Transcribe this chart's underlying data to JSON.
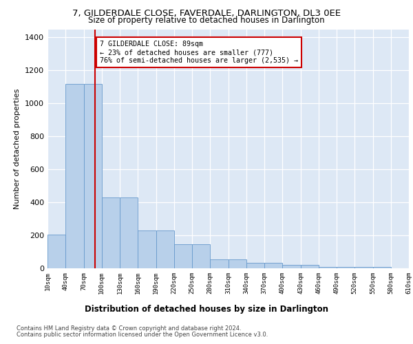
{
  "title": "7, GILDERDALE CLOSE, FAVERDALE, DARLINGTON, DL3 0EE",
  "subtitle": "Size of property relative to detached houses in Darlington",
  "xlabel": "Distribution of detached houses by size in Darlington",
  "ylabel": "Number of detached properties",
  "bar_color": "#b8d0ea",
  "bar_edge_color": "#6699cc",
  "background_color": "#dde8f5",
  "grid_color": "#ffffff",
  "annotation_box_color": "#cc0000",
  "vline_color": "#cc0000",
  "annotation_text_line1": "7 GILDERDALE CLOSE: 89sqm",
  "annotation_text_line2": "← 23% of detached houses are smaller (777)",
  "annotation_text_line3": "76% of semi-detached houses are larger (2,535) →",
  "property_size_sqm": 89,
  "footer_line1": "Contains HM Land Registry data © Crown copyright and database right 2024.",
  "footer_line2": "Contains public sector information licensed under the Open Government Licence v3.0.",
  "bar_heights": [
    205,
    1120,
    1120,
    430,
    430,
    230,
    230,
    145,
    145,
    55,
    55,
    35,
    35,
    20,
    20,
    10,
    10,
    10,
    10,
    0
  ],
  "bar_starts": [
    10,
    40,
    70,
    100,
    130,
    160,
    190,
    220,
    250,
    280,
    310,
    340,
    370,
    400,
    430,
    460,
    490,
    520,
    550,
    580
  ],
  "bin_width": 30,
  "xlim": [
    10,
    610
  ],
  "ylim": [
    0,
    1450
  ],
  "yticks": [
    0,
    200,
    400,
    600,
    800,
    1000,
    1200,
    1400
  ],
  "xtick_values": [
    10,
    40,
    70,
    100,
    130,
    160,
    190,
    220,
    250,
    280,
    310,
    340,
    370,
    400,
    430,
    460,
    490,
    520,
    550,
    580,
    610
  ]
}
